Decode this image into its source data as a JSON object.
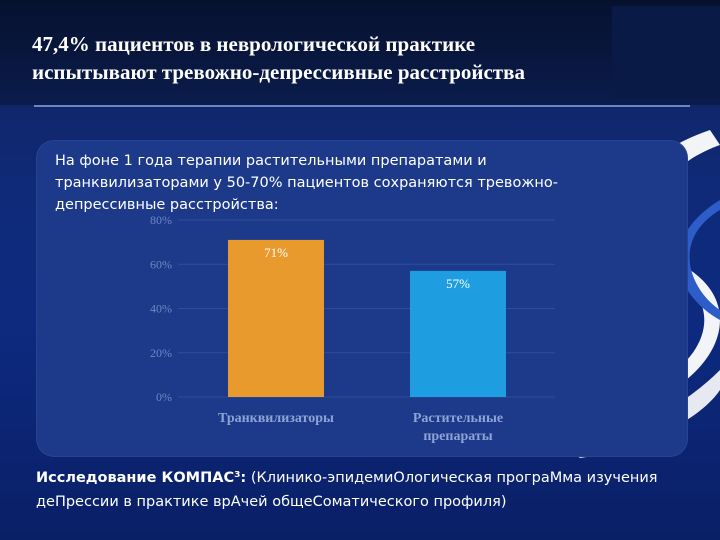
{
  "title": {
    "line1": "47,4% пациентов в неврологической практике",
    "line2": "испытывают тревожно-депрессивные расстройства"
  },
  "panel": {
    "text": "На фоне 1 года терапии растительными препаратами и транквилизаторами у 50-70% пациентов сохраняются тревожно-депрессивные расстройства:"
  },
  "chart_data": {
    "type": "bar",
    "categories": [
      "Транквилизаторы",
      "Растительные препараты"
    ],
    "values": [
      71,
      57
    ],
    "value_labels": [
      "71%",
      "57%"
    ],
    "bar_colors": [
      "#e89a2c",
      "#1e9ee0"
    ],
    "ylim": [
      0,
      80
    ],
    "yticks": [
      "0%",
      "20%",
      "40%",
      "60%",
      "80%"
    ],
    "title": "",
    "xlabel": "",
    "ylabel": ""
  },
  "footer": {
    "bold_label": "Исследование КОМПАС³:",
    "text": " (Клинико-эпидемиОлогическая програМма изучения деПрессии в практике врАчей общеСоматического профиля)"
  },
  "colors": {
    "background": "#0f2a78",
    "panel": "#1d3a8a",
    "accent": "#e89a2c",
    "accent2": "#1e9ee0"
  }
}
